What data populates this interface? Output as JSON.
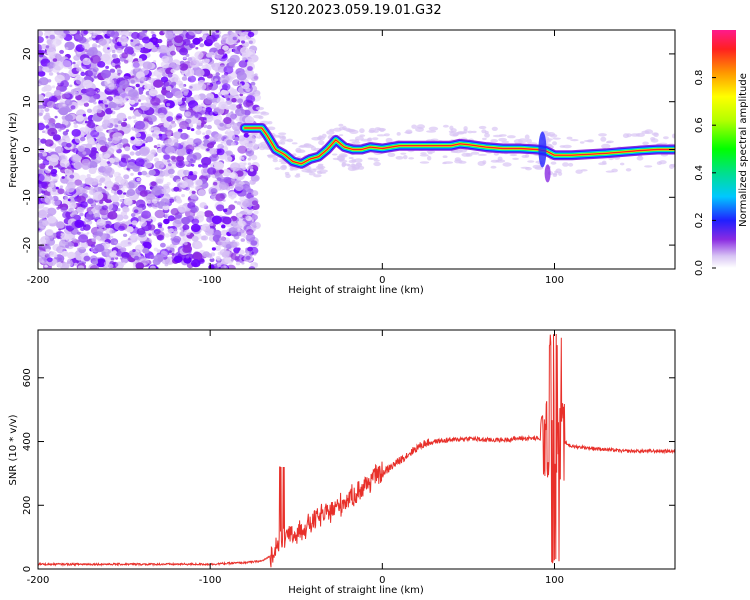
{
  "title": "S120.2023.059.19.01.G32",
  "colors": {
    "snr_line": "#e8302a",
    "frame": "#000000"
  },
  "chart_data": [
    {
      "type": "heatmap",
      "xlabel": "Height of straight line (km)",
      "ylabel": "Frequency (Hz)",
      "xlim": [
        -200,
        170
      ],
      "ylim": [
        -25,
        25
      ],
      "xticks": [
        -200,
        -100,
        0,
        100
      ],
      "yticks": [
        -20,
        -10,
        0,
        10,
        20
      ],
      "colorbar": {
        "label": "Normalized spectral amplitude",
        "range": [
          0,
          1
        ],
        "ticks": [
          "0.0",
          "0.2",
          "0.4",
          "0.6",
          "0.8"
        ],
        "tick_values": [
          0.0,
          0.2,
          0.4,
          0.6,
          0.8
        ]
      },
      "ridge": {
        "x": [
          -80,
          -75,
          -70,
          -67,
          -62,
          -57,
          -52,
          -47,
          -42,
          -37,
          -32,
          -27,
          -22,
          -17,
          -12,
          -7,
          0,
          10,
          20,
          30,
          40,
          45,
          50,
          60,
          70,
          80,
          90,
          95,
          100,
          110,
          120,
          130,
          140,
          150,
          160,
          170
        ],
        "y": [
          4.5,
          4.5,
          4.5,
          3,
          0,
          -1,
          -2.5,
          -3,
          -2,
          -1.5,
          0,
          2,
          0.5,
          0,
          0,
          0.5,
          0.2,
          0.8,
          0.8,
          0.8,
          0.8,
          1.2,
          1,
          0.5,
          0.2,
          0.2,
          0,
          -0.3,
          -1.2,
          -1.2,
          -1,
          -0.8,
          -0.5,
          -0.2,
          0,
          0
        ]
      },
      "noise_region_xmax": -80
    },
    {
      "type": "line",
      "xlabel": "Height of straight line (km)",
      "ylabel": "SNR (10 * v/v)",
      "xlim": [
        -200,
        170
      ],
      "ylim": [
        0,
        750
      ],
      "xticks": [
        -200,
        -100,
        0,
        100
      ],
      "yticks": [
        0,
        200,
        400,
        600
      ],
      "series": [
        {
          "x": [
            -200,
            -180,
            -160,
            -140,
            -120,
            -100,
            -80,
            -70,
            -65,
            -60,
            -55,
            -50,
            -45,
            -40,
            -35,
            -30,
            -25,
            -20,
            -15,
            -10,
            -5,
            0,
            5,
            10,
            15,
            20,
            25,
            30,
            40,
            50,
            60,
            70,
            80,
            90,
            95,
            100,
            105,
            110,
            120,
            130,
            140,
            150,
            160,
            170
          ],
          "y": [
            15,
            15,
            15,
            15,
            15,
            15,
            20,
            25,
            40,
            80,
            100,
            110,
            130,
            150,
            170,
            180,
            200,
            220,
            240,
            260,
            290,
            300,
            320,
            340,
            360,
            380,
            395,
            400,
            405,
            410,
            405,
            405,
            410,
            410,
            400,
            420,
            400,
            385,
            380,
            375,
            370,
            370,
            370,
            370
          ]
        }
      ]
    }
  ]
}
